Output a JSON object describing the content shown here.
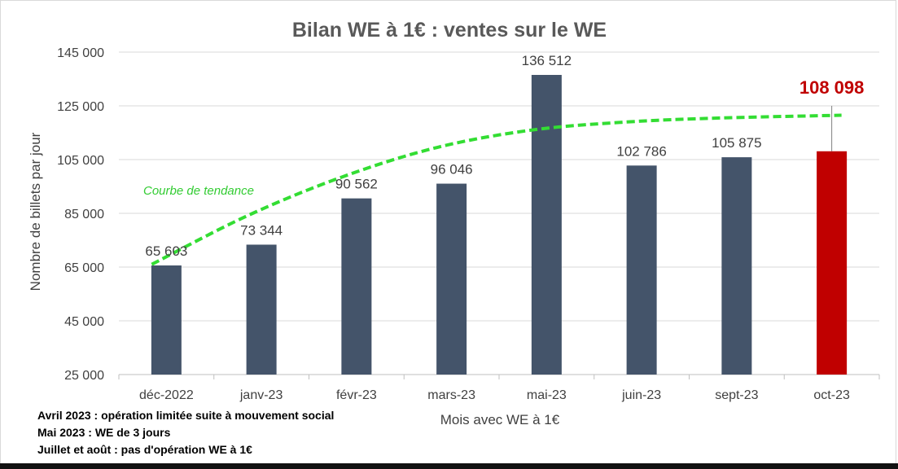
{
  "chart_data": {
    "type": "bar",
    "title": "Bilan WE à 1€ : ventes sur le WE",
    "xlabel": "Mois avec WE à 1€",
    "ylabel": "Nombre de billets par jour",
    "ylim": [
      25000,
      145000
    ],
    "yticks": [
      25000,
      45000,
      65000,
      85000,
      105000,
      125000,
      145000
    ],
    "ytick_labels": [
      "25 000",
      "45 000",
      "65 000",
      "85 000",
      "105 000",
      "125 000",
      "145 000"
    ],
    "categories": [
      "déc-2022",
      "janv-23",
      "févr-23",
      "mars-23",
      "mai-23",
      "juin-23",
      "sept-23",
      "oct-23"
    ],
    "values": [
      65603,
      73344,
      90562,
      96046,
      136512,
      102786,
      105875,
      108098
    ],
    "value_labels": [
      "65 603",
      "73 344",
      "90 562",
      "96 046",
      "136 512",
      "102 786",
      "105 875",
      "108 098"
    ],
    "bar_colors": [
      "#44546a",
      "#44546a",
      "#44546a",
      "#44546a",
      "#44546a",
      "#44546a",
      "#44546a",
      "#c00000"
    ],
    "highlight_index": 7,
    "error_bar": {
      "index": 7,
      "low": 108098,
      "high": 125000
    },
    "trendline": {
      "label": "Courbe de tendance",
      "color": "#33dd33",
      "values": [
        66000,
        84000,
        98500,
        109500,
        116000,
        119000,
        120500,
        121500
      ]
    },
    "grid": true,
    "legend": "none"
  },
  "notes": [
    "Avril 2023 : opération limitée suite à mouvement social",
    "Mai 2023 : WE de 3 jours",
    "Juillet et août : pas d'opération WE à 1€"
  ]
}
